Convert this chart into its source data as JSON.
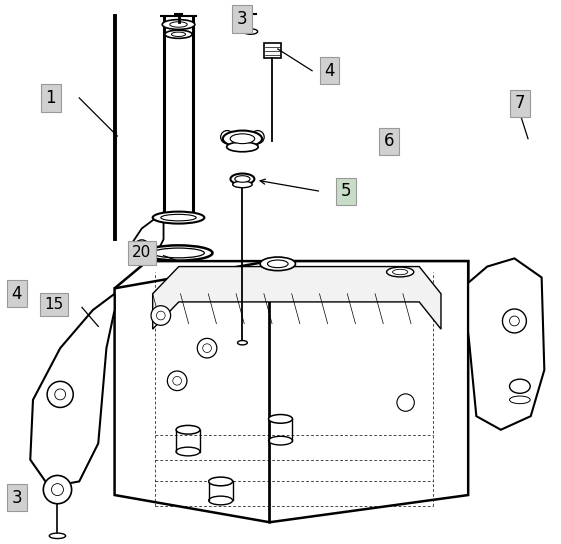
{
  "bg_color": "#ffffff",
  "line_color": "#000000",
  "label_bg_gray": "#d0d0d0",
  "label_bg_green": "#c8ddc8",
  "figsize": [
    5.61,
    5.44
  ],
  "dpi": 100
}
